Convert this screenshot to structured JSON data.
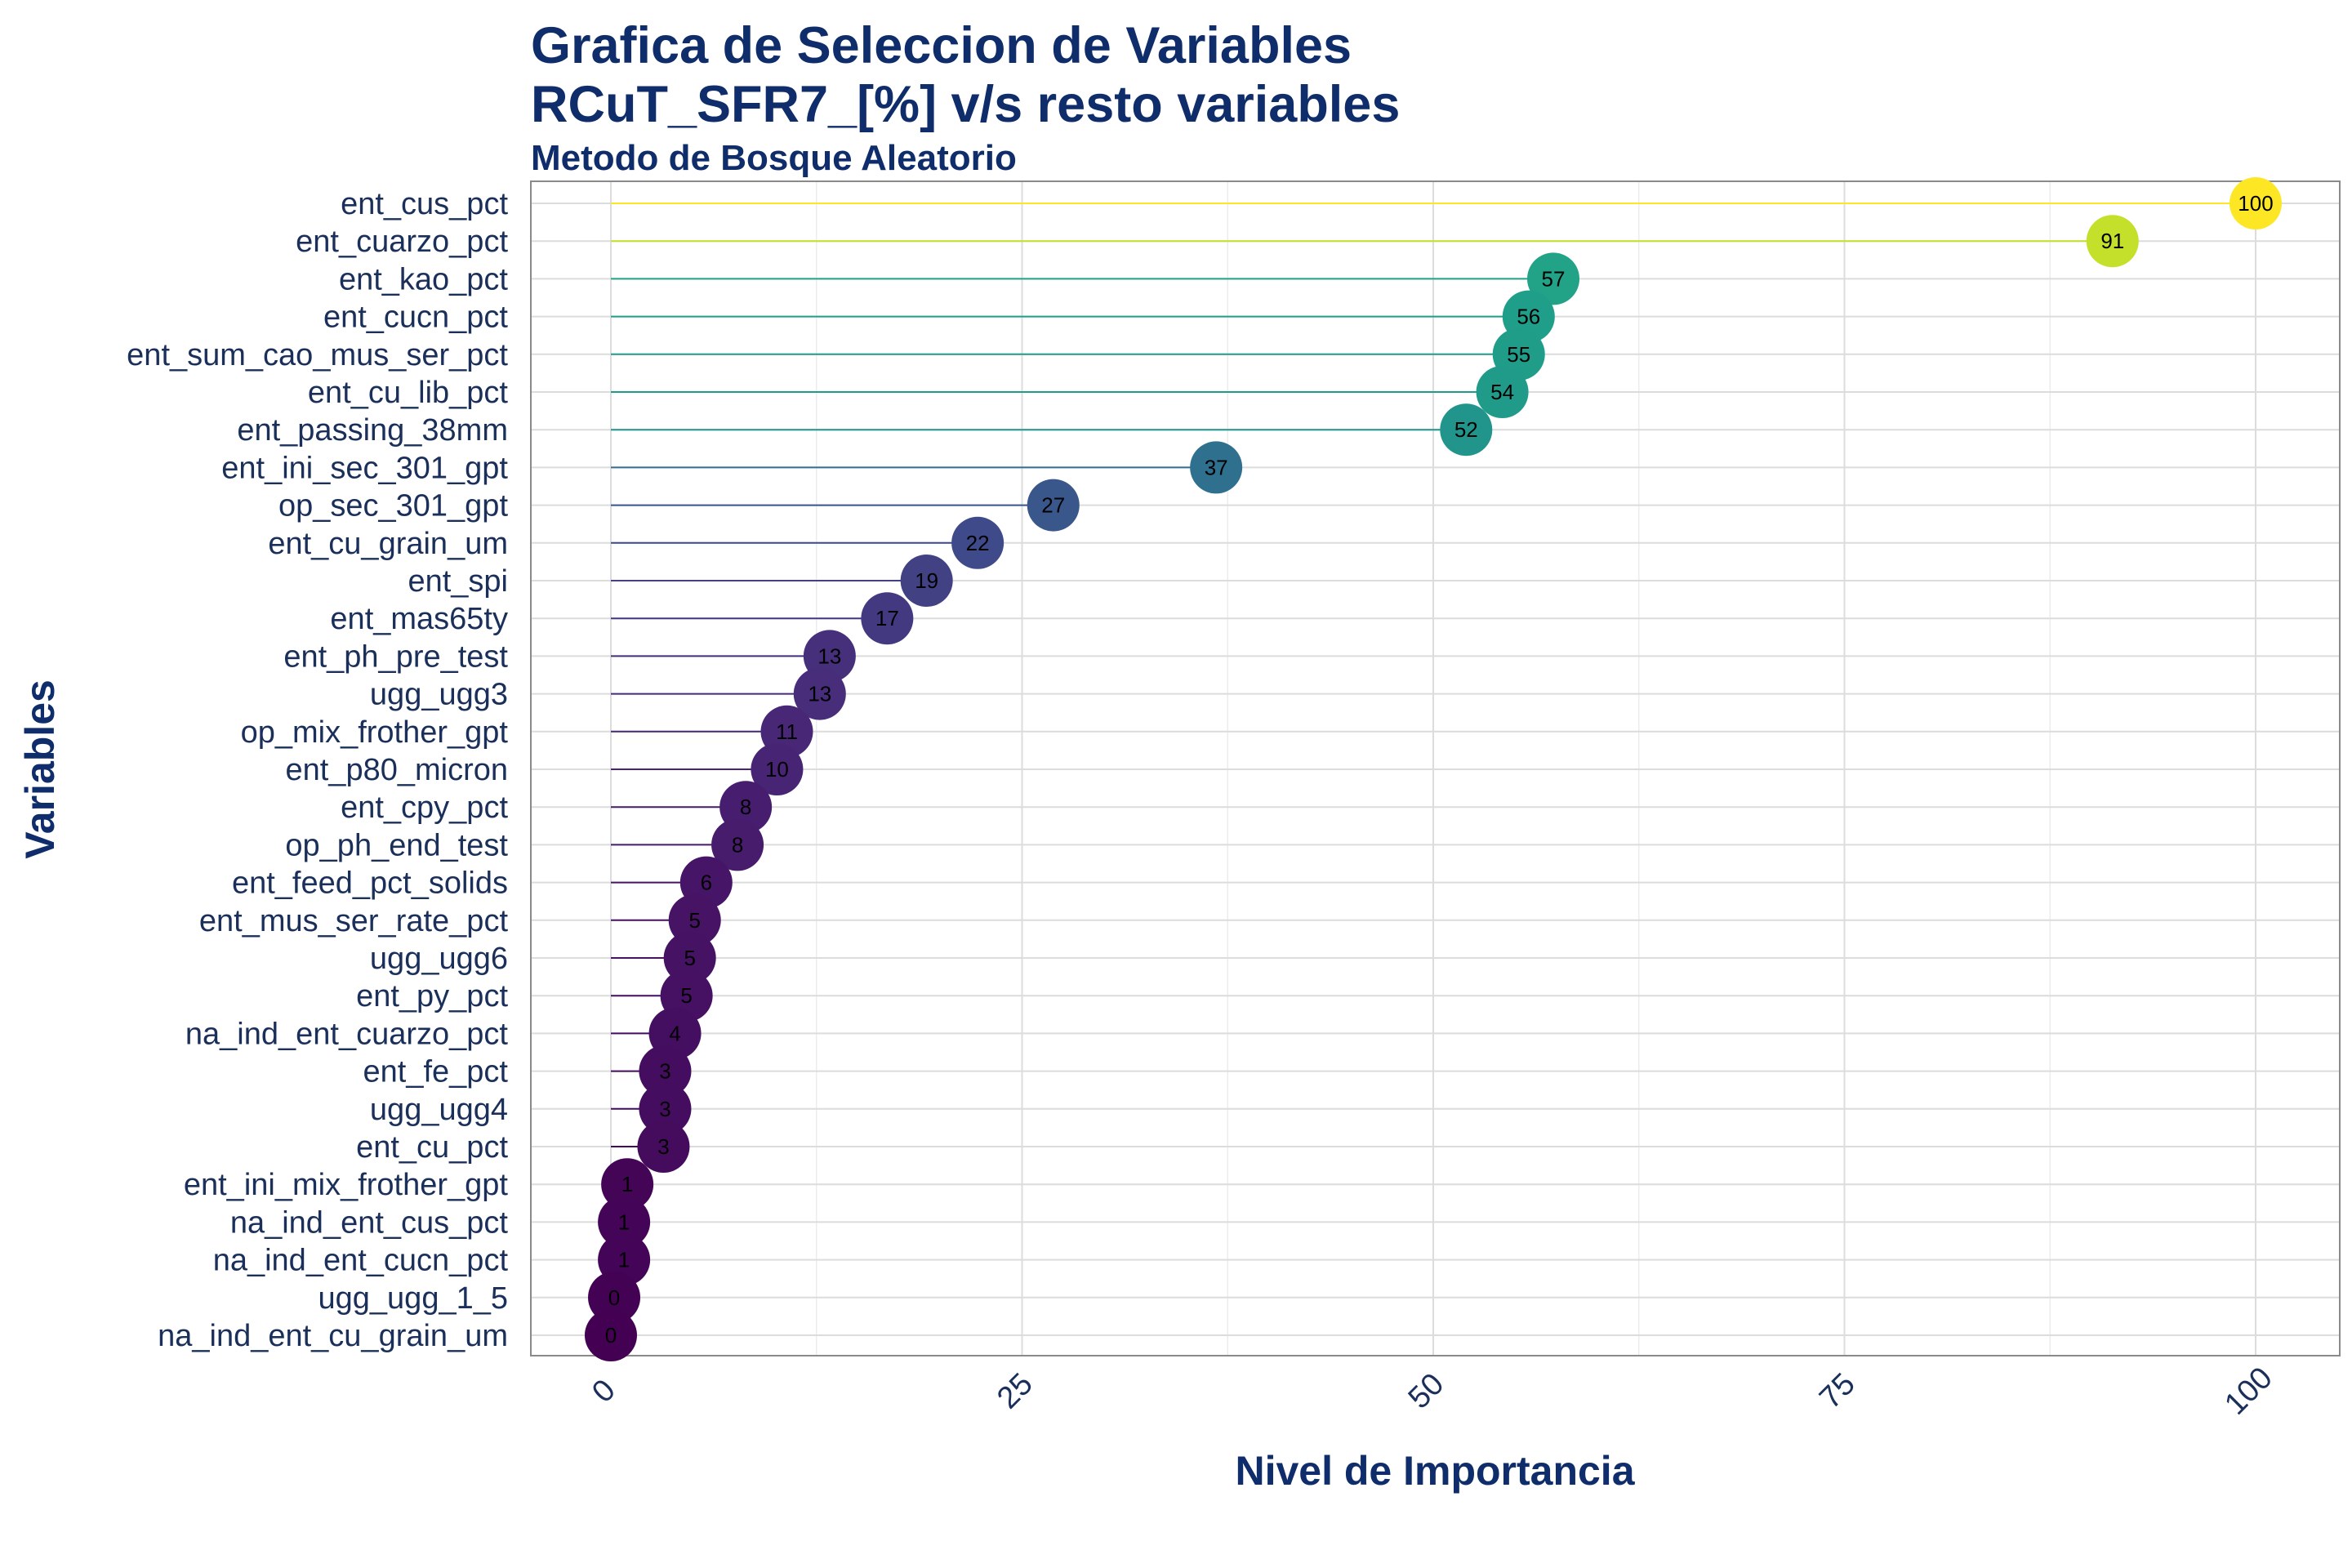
{
  "title_line1": "Grafica de Seleccion de Variables",
  "title_line2": "RCuT_SFR7_[%] v/s resto variables",
  "subtitle": "Metodo de Bosque Aleatorio",
  "colors": {
    "title": "#0f2d6b",
    "grid": "#dcdcdc",
    "palette": "viridis"
  },
  "chart_data": {
    "type": "lollipop",
    "xlabel": "Nivel de Importancia",
    "ylabel": "Variables",
    "xlim": [
      0,
      100
    ],
    "xticks": [
      0,
      25,
      50,
      75,
      100
    ],
    "grid": true,
    "categories": [
      "ent_cus_pct",
      "ent_cuarzo_pct",
      "ent_kao_pct",
      "ent_cucn_pct",
      "ent_sum_cao_mus_ser_pct",
      "ent_cu_lib_pct",
      "ent_passing_38mm",
      "ent_ini_sec_301_gpt",
      "op_sec_301_gpt",
      "ent_cu_grain_um",
      "ent_spi",
      "ent_mas65ty",
      "ent_ph_pre_test",
      "ugg_ugg3",
      "op_mix_frother_gpt",
      "ent_p80_micron",
      "ent_cpy_pct",
      "op_ph_end_test",
      "ent_feed_pct_solids",
      "ent_mus_ser_rate_pct",
      "ugg_ugg6",
      "ent_py_pct",
      "na_ind_ent_cuarzo_pct",
      "ent_fe_pct",
      "ugg_ugg4",
      "ent_cu_pct",
      "ent_ini_mix_frother_gpt",
      "na_ind_ent_cus_pct",
      "na_ind_ent_cucn_pct",
      "ugg_ugg_1_5",
      "na_ind_ent_cu_grain_um"
    ],
    "values": [
      100,
      91.3,
      57.3,
      55.8,
      55.2,
      54.2,
      52.0,
      36.8,
      26.9,
      22.3,
      19.2,
      16.8,
      13.3,
      12.7,
      10.7,
      10.1,
      8.2,
      7.7,
      5.8,
      5.1,
      4.8,
      4.6,
      3.9,
      3.3,
      3.3,
      3.2,
      1.0,
      0.8,
      0.8,
      0.2,
      0.0
    ],
    "labels": [
      "100",
      "91",
      "57",
      "56",
      "55",
      "54",
      "52",
      "37",
      "27",
      "22",
      "19",
      "17",
      "13",
      "13",
      "11",
      "10",
      "8",
      "8",
      "6",
      "5",
      "5",
      "5",
      "4",
      "3",
      "3",
      "3",
      "1",
      "1",
      "1",
      "0",
      "0"
    ]
  }
}
